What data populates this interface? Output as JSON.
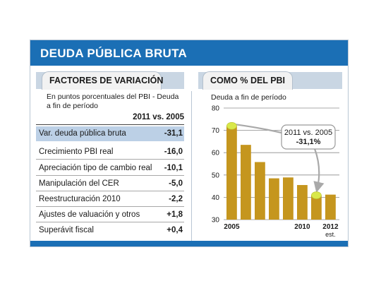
{
  "header": {
    "title": "DEUDA PÚBLICA BRUTA"
  },
  "left_panel": {
    "tab_label": "FACTORES DE VARIACIÓN",
    "note_line1": "En puntos porcentuales del PBI - Deuda",
    "note_line2": "a fin de período",
    "column_header": "2011 vs. 2005",
    "rows": [
      {
        "label": "Var. deuda pública bruta",
        "value": "-31,1",
        "highlight": true
      },
      {
        "label": "Crecimiento PBI real",
        "value": "-16,0"
      },
      {
        "label": "Apreciación tipo de cambio real",
        "value": "-10,1"
      },
      {
        "label": "Manipulación del CER",
        "value": "-5,0"
      },
      {
        "label": "Reestructuración 2010",
        "value": "-2,2"
      },
      {
        "label": "Ajustes de valuación y otros",
        "value": "+1,8"
      },
      {
        "label": "Superávit fiscal",
        "value": "+0,4"
      }
    ]
  },
  "right_panel": {
    "tab_label": "COMO % DEL PBI",
    "note": "Deuda a fin de período"
  },
  "chart_data": {
    "type": "bar",
    "title": "COMO % DEL PBI",
    "subtitle": "Deuda a fin de período",
    "categories": [
      "2005",
      "2006",
      "2007",
      "2008",
      "2009",
      "2010",
      "2011",
      "2012"
    ],
    "x_tick_labels": [
      "2005",
      "",
      "",
      "",
      "",
      "2010",
      "",
      "2012"
    ],
    "x_tick_sublabel": {
      "category": "2012",
      "text": "est."
    },
    "values": [
      72.0,
      63.5,
      55.8,
      48.5,
      48.9,
      45.5,
      40.9,
      41.2
    ],
    "ylim": [
      30,
      80
    ],
    "yticks": [
      30,
      40,
      50,
      60,
      70,
      80
    ],
    "grid": true,
    "bar_color": "#c5961e",
    "annotation": {
      "line1": "2011 vs. 2005",
      "line2": "-31,1%",
      "from": "2005",
      "to": "2011"
    },
    "marker_color": "#d9e84a"
  },
  "colors": {
    "brand_blue": "#1b6fb5",
    "highlight_row": "#bcd0e6",
    "tab_band": "#c9d6e3"
  }
}
